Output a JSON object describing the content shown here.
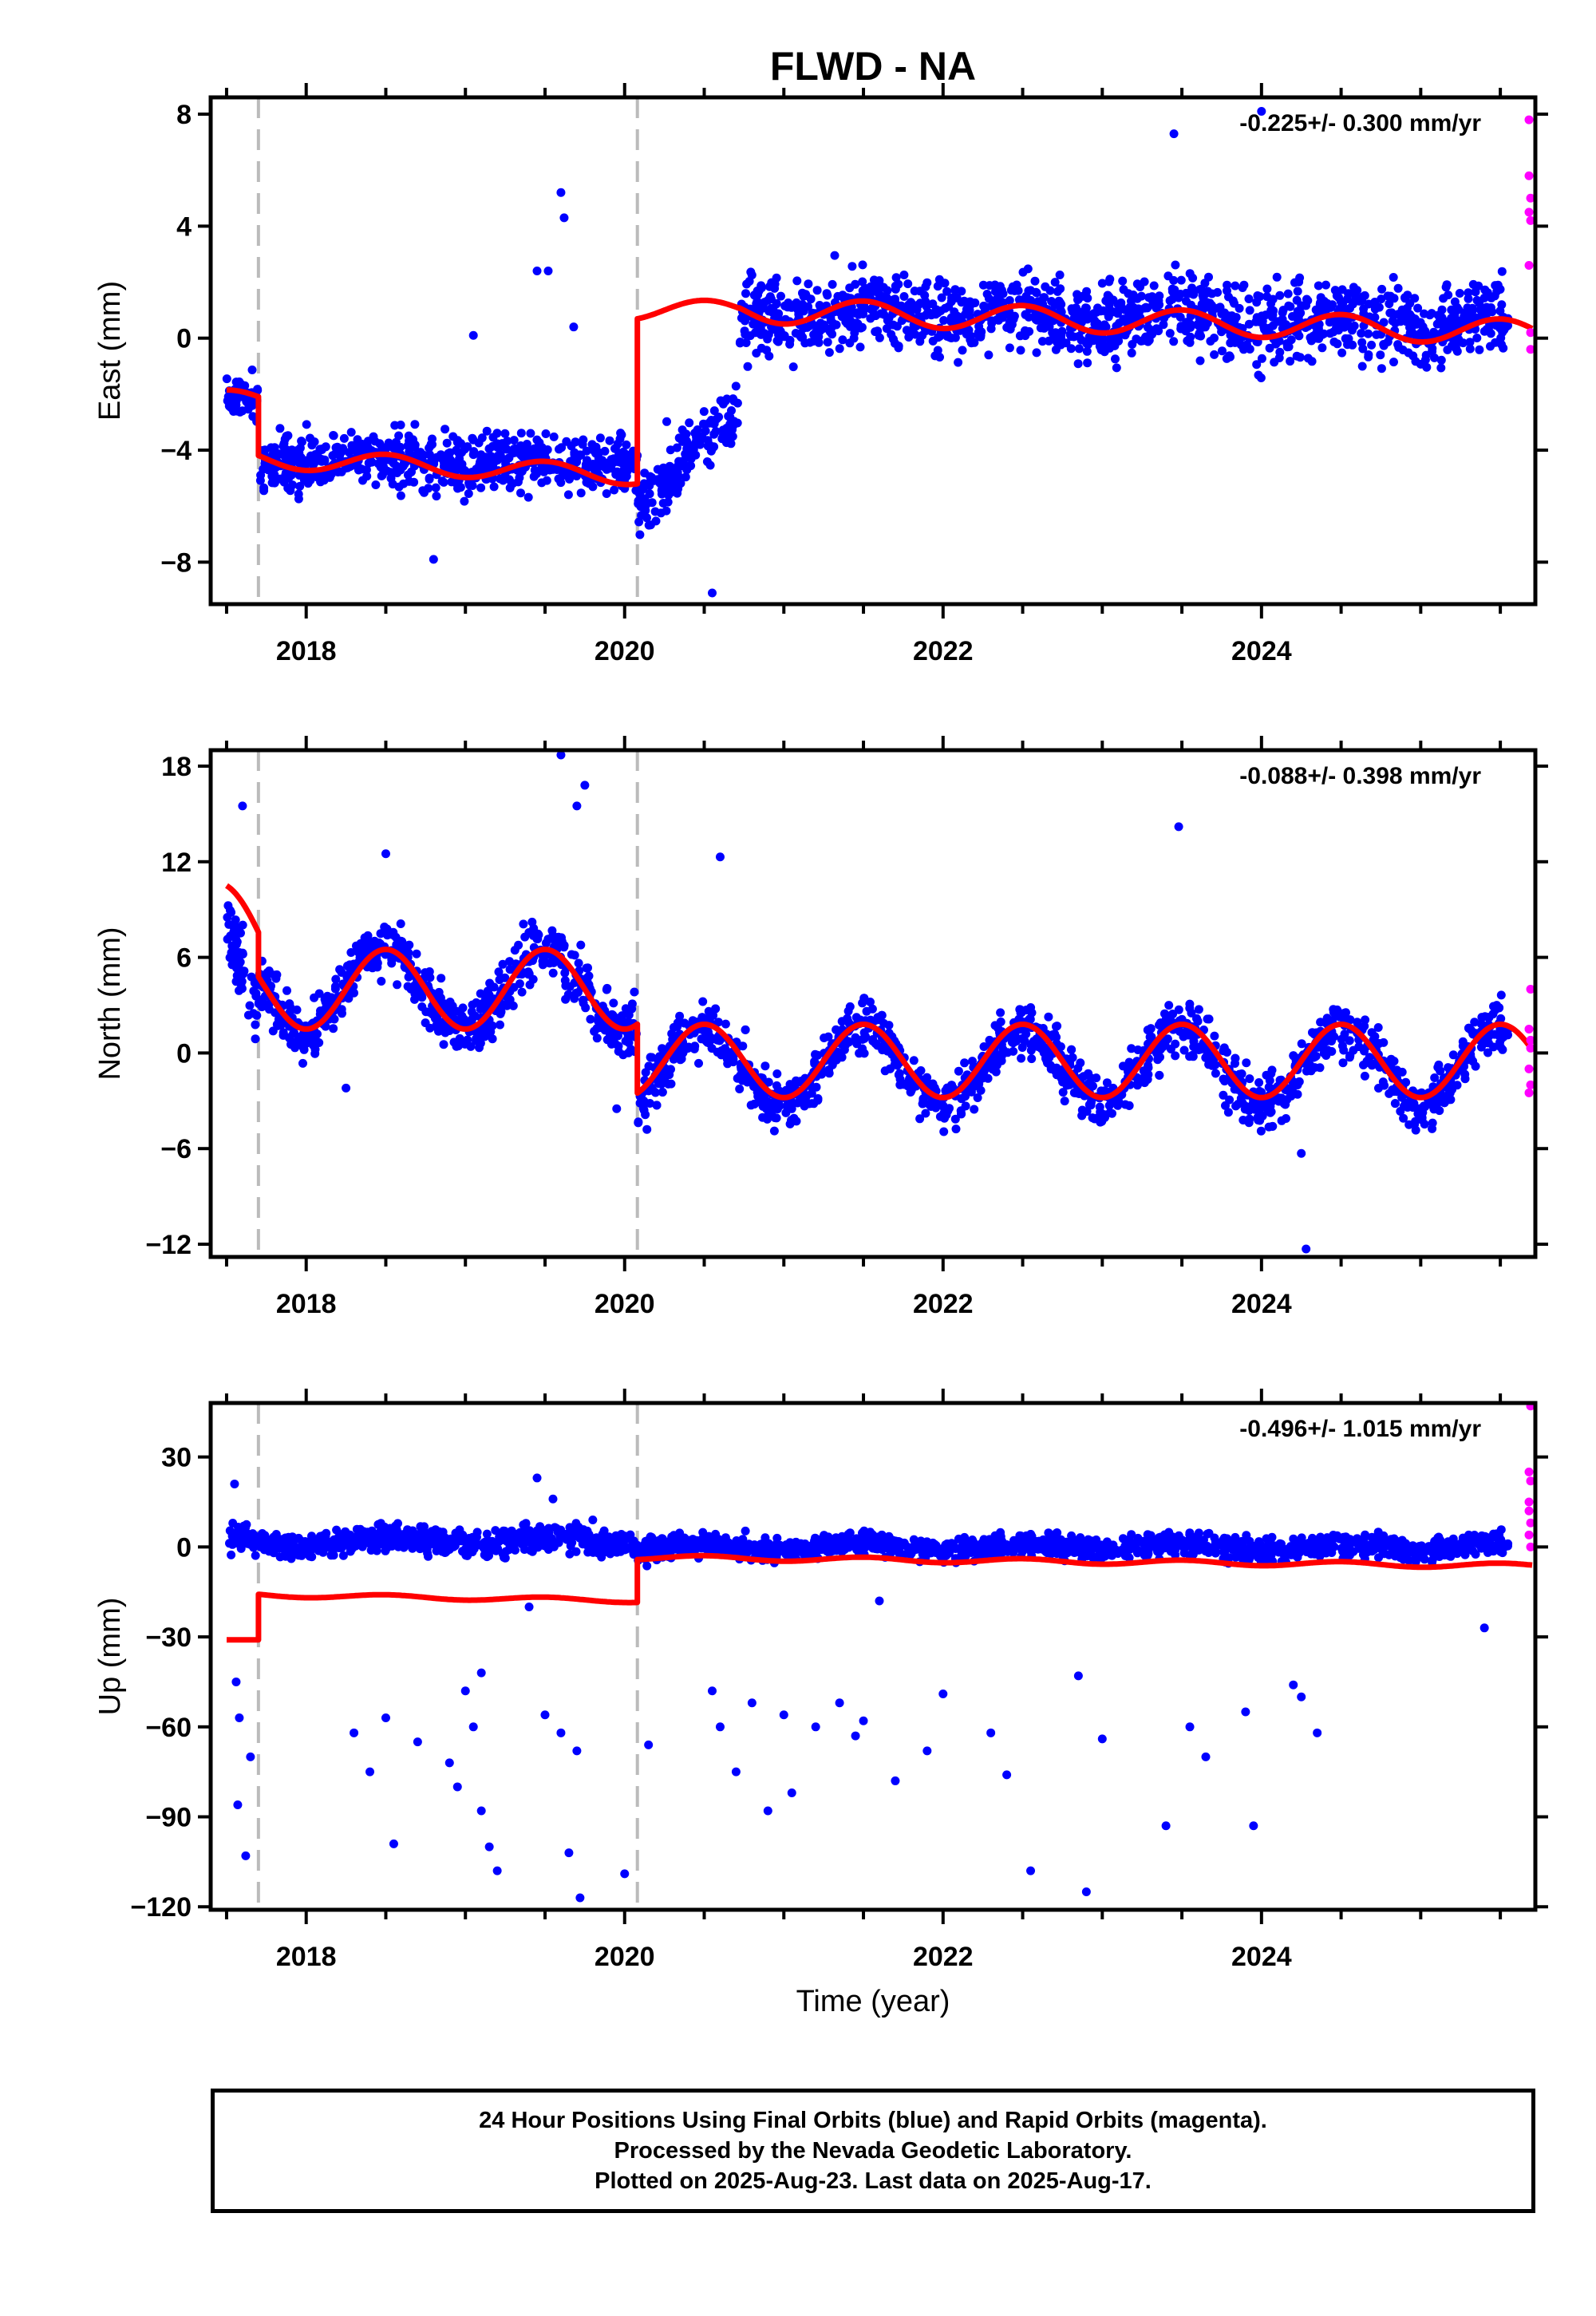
{
  "figure": {
    "title": "FLWD - NA",
    "xlabel": "Time (year)",
    "xticks": [
      2018,
      2020,
      2022,
      2024
    ],
    "event_lines": [
      2017.7,
      2020.08
    ],
    "colors": {
      "final": "#0000ff",
      "rapid": "#ff00ff",
      "model": "#ff0000",
      "events": "#bbbbbb"
    }
  },
  "chart_data": [
    {
      "type": "scatter",
      "component": "East",
      "ylabel": "East (mm)",
      "rate": "-0.225+/- 0.300 mm/yr",
      "xlim": [
        2017.4,
        2025.72
      ],
      "ylim": [
        -9.5,
        8.6
      ],
      "yticks": [
        -8,
        -4,
        0,
        4,
        8
      ],
      "series": [
        {
          "role": "final",
          "segments": [
            [
              2017.5,
              2017.7,
              -2.2,
              0.9,
              0.08,
              0
            ],
            [
              2017.7,
              2020.08,
              -4.4,
              1.2,
              0.1,
              0
            ],
            [
              2020.08,
              2020.72,
              -5.8,
              1.3,
              0.15,
              3.0
            ],
            [
              2020.72,
              2025.55,
              1.0,
              1.6,
              0.25,
              -0.5
            ]
          ],
          "outliers": [
            [
              2019.6,
              5.2
            ],
            [
              2019.62,
              4.3
            ],
            [
              2019.45,
              2.4
            ],
            [
              2019.52,
              2.4
            ],
            [
              2019.68,
              0.4
            ],
            [
              2020.55,
              -9.1
            ],
            [
              2023.45,
              7.3
            ],
            [
              2024.0,
              8.1
            ],
            [
              2018.8,
              -7.9
            ],
            [
              2019.05,
              0.1
            ]
          ]
        },
        {
          "role": "rapid",
          "points": [
            [
              2025.68,
              7.8
            ],
            [
              2025.68,
              5.8
            ],
            [
              2025.69,
              5.0
            ],
            [
              2025.69,
              4.2
            ],
            [
              2025.68,
              2.6
            ],
            [
              2025.69,
              0.2
            ],
            [
              2025.69,
              -0.4
            ],
            [
              2025.68,
              4.5
            ]
          ]
        },
        {
          "role": "model",
          "segments": [
            [
              2017.5,
              2017.7,
              -2.2,
              0.35,
              0
            ],
            [
              2017.7,
              2020.08,
              -4.3,
              0.35,
              -0.25
            ],
            [
              2020.08,
              2020.72,
              1.0,
              0.35,
              0
            ],
            [
              2020.72,
              2025.7,
              1.0,
              0.45,
              -0.16
            ]
          ]
        }
      ]
    },
    {
      "type": "scatter",
      "component": "North",
      "ylabel": "North (mm)",
      "rate": "-0.088+/- 0.398 mm/yr",
      "xlim": [
        2017.4,
        2025.72
      ],
      "ylim": [
        -12.8,
        19.0
      ],
      "yticks": [
        -12,
        -6,
        0,
        6,
        12,
        18
      ],
      "series": [
        {
          "role": "final",
          "segments": [
            [
              2017.5,
              2017.7,
              8.0,
              3.0,
              0.6,
              -6.0
            ],
            [
              2017.7,
              2020.08,
              4.0,
              2.2,
              2.6,
              0
            ],
            [
              2020.08,
              2025.55,
              -0.8,
              2.0,
              2.4,
              0
            ]
          ],
          "outliers": [
            [
              2019.6,
              18.7
            ],
            [
              2019.75,
              16.8
            ],
            [
              2019.7,
              15.5
            ],
            [
              2017.6,
              15.5
            ],
            [
              2023.48,
              14.2
            ],
            [
              2020.6,
              12.3
            ],
            [
              2018.5,
              12.5
            ],
            [
              2024.28,
              -12.3
            ],
            [
              2024.25,
              -6.3
            ],
            [
              2019.95,
              -3.5
            ],
            [
              2018.25,
              -2.2
            ]
          ]
        },
        {
          "role": "rapid",
          "points": [
            [
              2025.69,
              4.0
            ],
            [
              2025.68,
              1.5
            ],
            [
              2025.69,
              0.3
            ],
            [
              2025.68,
              -1.0
            ],
            [
              2025.69,
              -2.0
            ],
            [
              2025.68,
              -2.5
            ],
            [
              2025.69,
              0.8
            ]
          ]
        },
        {
          "role": "model",
          "segments": [
            [
              2017.5,
              2017.7,
              8.0,
              2.5,
              -6.0
            ],
            [
              2017.7,
              2020.08,
              4.0,
              2.5,
              0
            ],
            [
              2020.08,
              2025.7,
              -0.5,
              2.3,
              0
            ]
          ]
        }
      ]
    },
    {
      "type": "scatter",
      "component": "Up",
      "ylabel": "Up (mm)",
      "rate": "-0.496+/- 1.015 mm/yr",
      "xlim": [
        2017.4,
        2025.72
      ],
      "ylim": [
        -121,
        48
      ],
      "yticks": [
        -120,
        -90,
        -60,
        -30,
        0,
        30
      ],
      "series": [
        {
          "role": "final",
          "segments": [
            [
              2017.5,
              2020.08,
              2.0,
              5.0,
              1.5,
              0
            ],
            [
              2020.08,
              2025.55,
              0.0,
              4.5,
              1.2,
              0
            ]
          ],
          "outliers": [
            [
              2017.55,
              21
            ],
            [
              2017.56,
              -45
            ],
            [
              2017.58,
              -57
            ],
            [
              2017.57,
              -86
            ],
            [
              2017.62,
              -103
            ],
            [
              2017.65,
              -70
            ],
            [
              2018.3,
              -62
            ],
            [
              2018.4,
              -75
            ],
            [
              2018.5,
              -57
            ],
            [
              2018.55,
              -99
            ],
            [
              2018.7,
              -65
            ],
            [
              2018.9,
              -72
            ],
            [
              2018.95,
              -80
            ],
            [
              2019.05,
              -60
            ],
            [
              2019.1,
              -88
            ],
            [
              2019.15,
              -100
            ],
            [
              2019.2,
              -108
            ],
            [
              2019.0,
              -48
            ],
            [
              2019.1,
              -42
            ],
            [
              2019.45,
              23
            ],
            [
              2019.5,
              -56
            ],
            [
              2019.6,
              -62
            ],
            [
              2019.65,
              -102
            ],
            [
              2019.7,
              -68
            ],
            [
              2019.72,
              -117
            ],
            [
              2020.0,
              -109
            ],
            [
              2020.15,
              -66
            ],
            [
              2020.55,
              -48
            ],
            [
              2020.6,
              -60
            ],
            [
              2020.7,
              -75
            ],
            [
              2020.8,
              -52
            ],
            [
              2020.9,
              -88
            ],
            [
              2021.0,
              -56
            ],
            [
              2021.05,
              -82
            ],
            [
              2021.2,
              -60
            ],
            [
              2021.35,
              -52
            ],
            [
              2021.45,
              -63
            ],
            [
              2021.5,
              -58
            ],
            [
              2021.7,
              -78
            ],
            [
              2021.9,
              -68
            ],
            [
              2022.0,
              -49
            ],
            [
              2022.3,
              -62
            ],
            [
              2022.4,
              -76
            ],
            [
              2022.55,
              -108
            ],
            [
              2022.85,
              -43
            ],
            [
              2022.9,
              -115
            ],
            [
              2023.0,
              -64
            ],
            [
              2023.4,
              -93
            ],
            [
              2023.55,
              -60
            ],
            [
              2023.65,
              -70
            ],
            [
              2023.9,
              -55
            ],
            [
              2023.95,
              -93
            ],
            [
              2024.2,
              -46
            ],
            [
              2024.25,
              -50
            ],
            [
              2024.35,
              -62
            ],
            [
              2025.4,
              -27
            ],
            [
              2019.8,
              9
            ],
            [
              2019.55,
              16
            ],
            [
              2019.4,
              -20
            ],
            [
              2021.6,
              -18
            ]
          ]
        },
        {
          "role": "rapid",
          "points": [
            [
              2025.69,
              47
            ],
            [
              2025.68,
              25
            ],
            [
              2025.69,
              22
            ],
            [
              2025.68,
              15
            ],
            [
              2025.69,
              8
            ],
            [
              2025.68,
              4
            ],
            [
              2025.69,
              0
            ],
            [
              2025.68,
              12
            ]
          ]
        },
        {
          "role": "model",
          "segments": [
            [
              2017.5,
              2017.7,
              -31,
              0.0,
              0
            ],
            [
              2017.7,
              2020.08,
              -16,
              0.7,
              -0.8
            ],
            [
              2020.08,
              2025.7,
              -3.5,
              0.8,
              -0.5
            ]
          ]
        }
      ]
    }
  ],
  "caption": {
    "lines": [
      "24 Hour Positions Using Final Orbits (blue) and Rapid Orbits (magenta).",
      "Processed by the Nevada Geodetic Laboratory.",
      "Plotted on 2025-Aug-23. Last data on 2025-Aug-17."
    ]
  }
}
